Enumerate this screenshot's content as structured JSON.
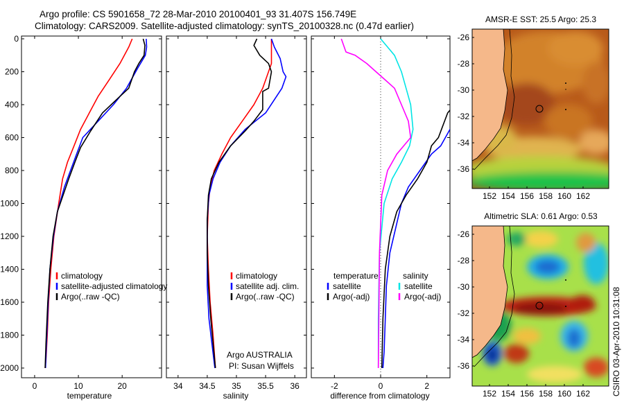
{
  "header": {
    "title_line1": "Argo profile: CS 5901658_72 28-Mar-2010 20100401_93 31.407S 156.749E",
    "title_line2": "Climatology: CARS2009. Satellite-adjusted climatology: synTS_20100328.nc (0.47d earlier)"
  },
  "side_label": "CSIRO 03-Apr-2010 10:31:08",
  "colors": {
    "climatology": "#ff0000",
    "satellite": "#0000ff",
    "argo": "#000000",
    "argo_salinity_diff": "#ff00ff",
    "satellite_salinity_diff": "#00e5e5",
    "land": "#f5b88a"
  },
  "chart_data": [
    {
      "id": "temperature",
      "type": "line",
      "xlabel": "temperature",
      "ylabel": "",
      "xlim": [
        -3,
        29
      ],
      "ylim": [
        2050,
        0
      ],
      "xticks": [
        0,
        10,
        20
      ],
      "yticks": [
        0,
        200,
        400,
        600,
        800,
        1000,
        1200,
        1400,
        1600,
        1800,
        2000
      ],
      "legend": [
        "climatology",
        "satellite-adjusted climatology",
        "Argo(..raw -QC)"
      ],
      "series": [
        {
          "name": "climatology",
          "color": "climatology",
          "x": [
            22.3,
            21.5,
            19.5,
            17.0,
            14.5,
            12.5,
            10.5,
            9.0,
            7.5,
            6.4,
            5.5,
            4.4,
            3.7,
            3.2,
            2.9,
            2.6,
            2.4
          ],
          "y": [
            0,
            50,
            150,
            250,
            350,
            450,
            550,
            650,
            750,
            850,
            1000,
            1200,
            1400,
            1600,
            1800,
            1950,
            2000
          ]
        },
        {
          "name": "satellite-adjusted climatology",
          "color": "satellite",
          "x": [
            25.5,
            25.6,
            25.3,
            23.5,
            21.0,
            18.0,
            14.5,
            11.0,
            9.6,
            8.2,
            6.8,
            5.2,
            4.3,
            3.5,
            3.1,
            2.7,
            2.5
          ],
          "y": [
            0,
            50,
            100,
            180,
            300,
            400,
            500,
            600,
            700,
            800,
            900,
            1050,
            1200,
            1400,
            1600,
            1850,
            2000
          ]
        },
        {
          "name": "Argo(..raw -QC)",
          "color": "argo",
          "x": [
            24.8,
            25.2,
            25.0,
            23.8,
            22.8,
            21.5,
            19.5,
            17.5,
            15.5,
            12.8,
            10.5,
            9.2,
            7.8,
            6.5,
            5.2,
            4.2,
            3.5,
            3.0,
            2.6,
            2.4
          ],
          "y": [
            0,
            40,
            100,
            150,
            200,
            300,
            350,
            400,
            450,
            560,
            660,
            750,
            850,
            950,
            1050,
            1200,
            1400,
            1600,
            1850,
            2000
          ]
        }
      ]
    },
    {
      "id": "salinity",
      "type": "line",
      "xlabel": "salinity",
      "ylabel": "",
      "xlim": [
        33.8,
        36.2
      ],
      "ylim": [
        2050,
        0
      ],
      "xticks": [
        34,
        34.5,
        35,
        35.5,
        36
      ],
      "yticks": [
        0,
        200,
        400,
        600,
        800,
        1000,
        1200,
        1400,
        1600,
        1800,
        2000
      ],
      "legend": [
        "climatology",
        "satellite adj. clim.",
        "Argo(..raw -QC)"
      ],
      "annotation_line1": "Argo AUSTRALIA",
      "annotation_line2": "PI: Susan Wijffels",
      "series": [
        {
          "name": "climatology",
          "color": "climatology",
          "x": [
            35.6,
            35.6,
            35.6,
            35.55,
            35.45,
            35.3,
            35.1,
            34.9,
            34.75,
            34.62,
            34.55,
            34.52,
            34.5,
            34.52,
            34.55,
            34.6,
            34.64
          ],
          "y": [
            0,
            50,
            150,
            200,
            300,
            400,
            500,
            600,
            700,
            800,
            900,
            1000,
            1200,
            1400,
            1600,
            1800,
            2000
          ]
        },
        {
          "name": "satellite adj. clim.",
          "color": "satellite",
          "x": [
            35.6,
            35.65,
            35.75,
            35.8,
            35.85,
            35.78,
            35.5,
            35.15,
            34.9,
            34.72,
            34.6,
            34.53,
            34.5,
            34.5,
            34.5,
            34.53,
            34.58,
            34.63
          ],
          "y": [
            0,
            50,
            120,
            200,
            230,
            300,
            450,
            550,
            650,
            750,
            850,
            950,
            1100,
            1300,
            1500,
            1700,
            1850,
            2000
          ]
        },
        {
          "name": "Argo(..raw -QC)",
          "color": "argo",
          "x": [
            35.35,
            35.3,
            35.4,
            35.55,
            35.6,
            35.55,
            35.45,
            35.45,
            35.3,
            35.15,
            34.9,
            34.7,
            34.57,
            34.52,
            34.5,
            34.5,
            34.52,
            34.56,
            34.6,
            34.64
          ],
          "y": [
            0,
            40,
            100,
            150,
            200,
            300,
            320,
            430,
            500,
            560,
            650,
            750,
            850,
            950,
            1100,
            1300,
            1500,
            1700,
            1850,
            2000
          ]
        }
      ]
    },
    {
      "id": "difference",
      "type": "line",
      "xlabel": "difference from climatology",
      "ylabel": "",
      "xlim": [
        -3,
        3
      ],
      "ylim": [
        2050,
        0
      ],
      "xticks": [
        -2,
        0,
        2
      ],
      "yticks": [
        0,
        200,
        400,
        600,
        800,
        1000,
        1200,
        1400,
        1600,
        1800,
        2000
      ],
      "zero_line": 0,
      "legend_left": {
        "heading": "temperature",
        "items": [
          "satellite",
          "Argo(-adj)"
        ]
      },
      "legend_right": {
        "heading": "salinity",
        "items": [
          "satellite",
          "Argo(-adj)"
        ]
      },
      "series": [
        {
          "name": "temperature satellite",
          "color": "satellite",
          "x": [
            3.5,
            3.3,
            3.0,
            2.6,
            2.2,
            1.7,
            1.2,
            0.9,
            0.65,
            0.4,
            0.25,
            0.2,
            0.15,
            0.1
          ],
          "y": [
            450,
            500,
            550,
            650,
            700,
            800,
            900,
            1000,
            1150,
            1300,
            1500,
            1700,
            1900,
            2000
          ]
        },
        {
          "name": "temperature Argo(-adj)",
          "color": "argo",
          "x": [
            3.5,
            3.2,
            2.9,
            2.5,
            2.2,
            2.0,
            1.6,
            1.1,
            0.7,
            0.4,
            0.2,
            0.1,
            0.05
          ],
          "y": [
            350,
            400,
            450,
            600,
            650,
            750,
            850,
            950,
            1050,
            1200,
            1400,
            1700,
            2000
          ]
        },
        {
          "name": "salinity satellite",
          "color": "satellite_salinity_diff",
          "x": [
            0.0,
            0.3,
            0.6,
            0.9,
            1.1,
            1.3,
            1.4,
            1.25,
            0.9,
            0.5,
            0.15,
            -0.05,
            -0.1,
            -0.1
          ],
          "y": [
            0,
            50,
            100,
            200,
            300,
            400,
            550,
            650,
            750,
            850,
            1000,
            1300,
            1700,
            2000
          ]
        },
        {
          "name": "salinity Argo(-adj)",
          "color": "argo_salinity_diff",
          "x": [
            -1.7,
            -1.5,
            -1.1,
            -0.6,
            -0.2,
            0.2,
            0.6,
            0.9,
            1.2,
            1.3,
            0.7,
            0.3,
            0.05,
            -0.05,
            -0.1
          ],
          "y": [
            0,
            80,
            100,
            150,
            200,
            250,
            300,
            400,
            500,
            600,
            700,
            800,
            950,
            1300,
            2000
          ]
        }
      ]
    }
  ],
  "maps": [
    {
      "id": "sst",
      "title": "AMSR-E SST: 25.5 Argo: 25.3",
      "type": "heatmap",
      "xticks": [
        "152",
        "154",
        "156",
        "158",
        "160",
        "162"
      ],
      "yticks": [
        "-26",
        "-28",
        "-30",
        "-32",
        "-34",
        "-36"
      ],
      "argo_position": [
        156.749,
        -31.407
      ]
    },
    {
      "id": "sla",
      "title": "Altimetric SLA: 0.61 Argo: 0.53",
      "type": "heatmap",
      "xticks": [
        "152",
        "154",
        "156",
        "158",
        "160",
        "162"
      ],
      "yticks": [
        "-26",
        "-28",
        "-30",
        "-32",
        "-34",
        "-36"
      ],
      "argo_position": [
        156.749,
        -31.407
      ]
    }
  ]
}
